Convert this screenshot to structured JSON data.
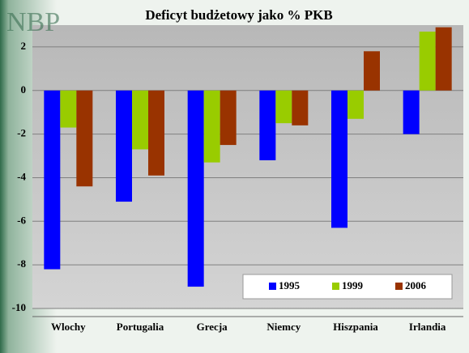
{
  "logo": "NBP",
  "chart_data": {
    "type": "bar",
    "title": "Deficyt budżetowy jako % PKB",
    "categories": [
      "Wlochy",
      "Portugalia",
      "Grecja",
      "Niemcy",
      "Hiszpania",
      "Irlandia"
    ],
    "series": [
      {
        "name": "1995",
        "color": "#0000ff",
        "values": [
          -8.2,
          -5.1,
          -9.0,
          -3.2,
          -6.3,
          -2.0
        ]
      },
      {
        "name": "1999",
        "color": "#99cc00",
        "values": [
          -1.7,
          -2.7,
          -3.3,
          -1.5,
          -1.3,
          2.7
        ]
      },
      {
        "name": "2006",
        "color": "#993300",
        "values": [
          -4.4,
          -3.9,
          -2.5,
          -1.6,
          1.8,
          2.9
        ]
      }
    ],
    "ylim": [
      -10,
      3
    ],
    "yticks": [
      -10,
      -8,
      -6,
      -4,
      -2,
      0,
      2
    ],
    "grid": true,
    "legend": "bottom-right"
  }
}
